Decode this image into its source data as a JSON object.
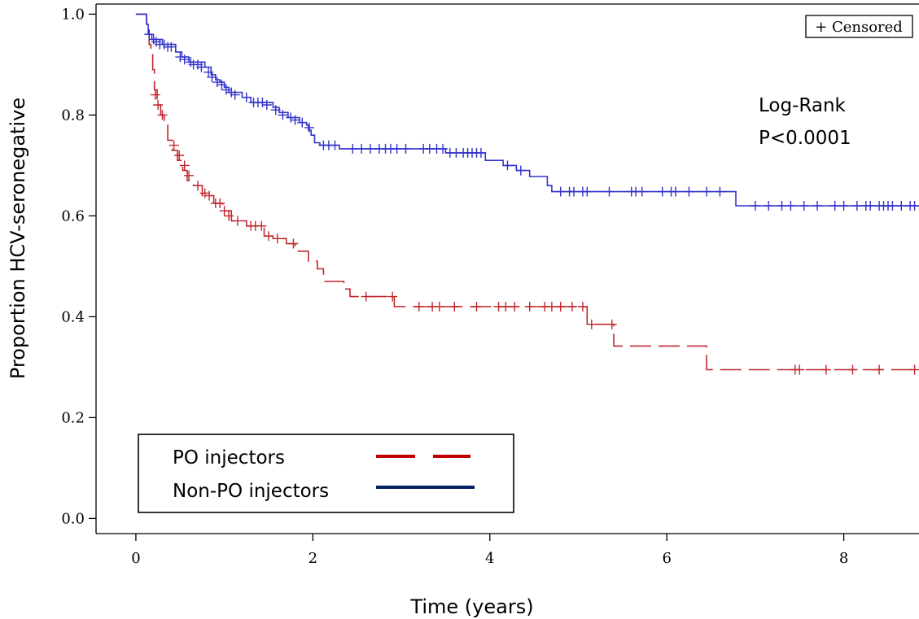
{
  "chart_data": {
    "type": "line",
    "title": "",
    "xlabel": "Time (years)",
    "ylabel": "Proportion HCV-seronegative",
    "xlim": [
      -0.45,
      8.85
    ],
    "ylim": [
      -0.03,
      1.02
    ],
    "xticks": [
      0,
      2,
      4,
      6,
      8
    ],
    "xtick_labels": [
      "0",
      "2",
      "4",
      "6",
      "8"
    ],
    "yticks": [
      0.0,
      0.2,
      0.4,
      0.6,
      0.8,
      1.0
    ],
    "ytick_labels": [
      "0.0",
      "0.2",
      "0.4",
      "0.6",
      "0.8",
      "1.0"
    ],
    "grid": false,
    "censored_legend": "+ Censored",
    "annotation": [
      "Log-Rank",
      "P<0.0001"
    ],
    "legend_position": "bottom-left",
    "series": [
      {
        "name": "PO injectors",
        "style": "dashed",
        "color": "#c0272d",
        "legend_color": "#c00000",
        "steps": [
          [
            0,
            1.0
          ],
          [
            0.12,
            0.97
          ],
          [
            0.15,
            0.94
          ],
          [
            0.17,
            0.92
          ],
          [
            0.19,
            0.89
          ],
          [
            0.21,
            0.85
          ],
          [
            0.24,
            0.82
          ],
          [
            0.28,
            0.8
          ],
          [
            0.32,
            0.78
          ],
          [
            0.36,
            0.75
          ],
          [
            0.41,
            0.73
          ],
          [
            0.47,
            0.71
          ],
          [
            0.53,
            0.69
          ],
          [
            0.58,
            0.67
          ],
          [
            0.65,
            0.66
          ],
          [
            0.75,
            0.64
          ],
          [
            0.88,
            0.625
          ],
          [
            0.98,
            0.61
          ],
          [
            1.08,
            0.59
          ],
          [
            1.25,
            0.58
          ],
          [
            1.45,
            0.56
          ],
          [
            1.55,
            0.555
          ],
          [
            1.7,
            0.545
          ],
          [
            1.8,
            0.53
          ],
          [
            1.95,
            0.51
          ],
          [
            2.05,
            0.495
          ],
          [
            2.12,
            0.47
          ],
          [
            2.35,
            0.455
          ],
          [
            2.42,
            0.44
          ],
          [
            2.92,
            0.42
          ],
          [
            5.1,
            0.385
          ],
          [
            5.4,
            0.342
          ],
          [
            6.45,
            0.295
          ]
        ],
        "end_x": 8.85,
        "censored": [
          [
            0.22,
            0.84
          ],
          [
            0.25,
            0.82
          ],
          [
            0.3,
            0.8
          ],
          [
            0.43,
            0.74
          ],
          [
            0.49,
            0.72
          ],
          [
            0.55,
            0.7
          ],
          [
            0.6,
            0.68
          ],
          [
            0.7,
            0.66
          ],
          [
            0.78,
            0.645
          ],
          [
            0.83,
            0.64
          ],
          [
            0.9,
            0.625
          ],
          [
            0.95,
            0.625
          ],
          [
            1.0,
            0.61
          ],
          [
            1.05,
            0.6
          ],
          [
            1.15,
            0.59
          ],
          [
            1.3,
            0.58
          ],
          [
            1.35,
            0.58
          ],
          [
            1.42,
            0.58
          ],
          [
            1.5,
            0.56
          ],
          [
            1.6,
            0.555
          ],
          [
            1.78,
            0.545
          ],
          [
            2.6,
            0.44
          ],
          [
            2.9,
            0.44
          ],
          [
            3.2,
            0.42
          ],
          [
            3.35,
            0.42
          ],
          [
            3.43,
            0.42
          ],
          [
            3.6,
            0.42
          ],
          [
            3.85,
            0.42
          ],
          [
            4.1,
            0.42
          ],
          [
            4.18,
            0.42
          ],
          [
            4.28,
            0.42
          ],
          [
            4.45,
            0.42
          ],
          [
            4.62,
            0.42
          ],
          [
            4.7,
            0.42
          ],
          [
            4.8,
            0.42
          ],
          [
            4.93,
            0.42
          ],
          [
            5.05,
            0.42
          ],
          [
            5.15,
            0.385
          ],
          [
            5.38,
            0.385
          ],
          [
            7.45,
            0.295
          ],
          [
            7.5,
            0.295
          ],
          [
            7.8,
            0.295
          ],
          [
            8.1,
            0.295
          ],
          [
            8.4,
            0.295
          ],
          [
            8.8,
            0.295
          ]
        ]
      },
      {
        "name": "Non-PO injectors",
        "style": "solid",
        "color": "#3333cc",
        "legend_color": "#002060",
        "steps": [
          [
            0,
            1.0
          ],
          [
            0.12,
            0.98
          ],
          [
            0.14,
            0.96
          ],
          [
            0.18,
            0.95
          ],
          [
            0.3,
            0.94
          ],
          [
            0.45,
            0.925
          ],
          [
            0.52,
            0.915
          ],
          [
            0.6,
            0.905
          ],
          [
            0.78,
            0.895
          ],
          [
            0.85,
            0.88
          ],
          [
            0.9,
            0.87
          ],
          [
            0.95,
            0.865
          ],
          [
            1.0,
            0.855
          ],
          [
            1.05,
            0.845
          ],
          [
            1.2,
            0.835
          ],
          [
            1.3,
            0.825
          ],
          [
            1.55,
            0.815
          ],
          [
            1.62,
            0.805
          ],
          [
            1.72,
            0.795
          ],
          [
            1.85,
            0.785
          ],
          [
            1.93,
            0.78
          ],
          [
            1.95,
            0.77
          ],
          [
            1.98,
            0.76
          ],
          [
            2.02,
            0.745
          ],
          [
            2.08,
            0.74
          ],
          [
            2.3,
            0.733
          ],
          [
            3.5,
            0.725
          ],
          [
            3.95,
            0.71
          ],
          [
            4.15,
            0.7
          ],
          [
            4.3,
            0.69
          ],
          [
            4.45,
            0.678
          ],
          [
            4.65,
            0.66
          ],
          [
            4.7,
            0.648
          ],
          [
            6.78,
            0.62
          ]
        ],
        "end_x": 8.85,
        "censored": [
          [
            0.15,
            0.96
          ],
          [
            0.2,
            0.95
          ],
          [
            0.23,
            0.945
          ],
          [
            0.27,
            0.94
          ],
          [
            0.32,
            0.94
          ],
          [
            0.36,
            0.935
          ],
          [
            0.4,
            0.935
          ],
          [
            0.5,
            0.915
          ],
          [
            0.55,
            0.91
          ],
          [
            0.62,
            0.905
          ],
          [
            0.65,
            0.9
          ],
          [
            0.7,
            0.9
          ],
          [
            0.74,
            0.895
          ],
          [
            0.82,
            0.885
          ],
          [
            0.86,
            0.875
          ],
          [
            0.92,
            0.865
          ],
          [
            0.97,
            0.86
          ],
          [
            1.02,
            0.85
          ],
          [
            1.08,
            0.845
          ],
          [
            1.12,
            0.84
          ],
          [
            1.25,
            0.835
          ],
          [
            1.33,
            0.825
          ],
          [
            1.38,
            0.825
          ],
          [
            1.43,
            0.825
          ],
          [
            1.48,
            0.82
          ],
          [
            1.58,
            0.81
          ],
          [
            1.66,
            0.8
          ],
          [
            1.75,
            0.795
          ],
          [
            1.8,
            0.79
          ],
          [
            1.88,
            0.785
          ],
          [
            1.96,
            0.775
          ],
          [
            2.12,
            0.74
          ],
          [
            2.18,
            0.74
          ],
          [
            2.25,
            0.74
          ],
          [
            2.45,
            0.733
          ],
          [
            2.55,
            0.733
          ],
          [
            2.65,
            0.733
          ],
          [
            2.75,
            0.733
          ],
          [
            2.82,
            0.733
          ],
          [
            2.88,
            0.733
          ],
          [
            2.95,
            0.733
          ],
          [
            3.05,
            0.733
          ],
          [
            3.25,
            0.733
          ],
          [
            3.32,
            0.733
          ],
          [
            3.4,
            0.733
          ],
          [
            3.47,
            0.733
          ],
          [
            3.55,
            0.725
          ],
          [
            3.62,
            0.725
          ],
          [
            3.7,
            0.725
          ],
          [
            3.75,
            0.725
          ],
          [
            3.8,
            0.725
          ],
          [
            3.85,
            0.725
          ],
          [
            3.9,
            0.725
          ],
          [
            4.2,
            0.7
          ],
          [
            4.35,
            0.69
          ],
          [
            4.8,
            0.648
          ],
          [
            4.9,
            0.648
          ],
          [
            4.95,
            0.648
          ],
          [
            5.05,
            0.648
          ],
          [
            5.1,
            0.648
          ],
          [
            5.35,
            0.648
          ],
          [
            5.6,
            0.648
          ],
          [
            5.65,
            0.648
          ],
          [
            5.72,
            0.648
          ],
          [
            5.95,
            0.648
          ],
          [
            6.05,
            0.648
          ],
          [
            6.1,
            0.648
          ],
          [
            6.25,
            0.648
          ],
          [
            6.45,
            0.648
          ],
          [
            6.6,
            0.648
          ],
          [
            7.0,
            0.62
          ],
          [
            7.15,
            0.62
          ],
          [
            7.3,
            0.62
          ],
          [
            7.4,
            0.62
          ],
          [
            7.55,
            0.62
          ],
          [
            7.7,
            0.62
          ],
          [
            7.9,
            0.62
          ],
          [
            8.0,
            0.62
          ],
          [
            8.15,
            0.62
          ],
          [
            8.25,
            0.62
          ],
          [
            8.3,
            0.62
          ],
          [
            8.4,
            0.62
          ],
          [
            8.45,
            0.62
          ],
          [
            8.5,
            0.62
          ],
          [
            8.55,
            0.62
          ],
          [
            8.65,
            0.62
          ],
          [
            8.75,
            0.62
          ],
          [
            8.8,
            0.62
          ]
        ]
      }
    ]
  }
}
